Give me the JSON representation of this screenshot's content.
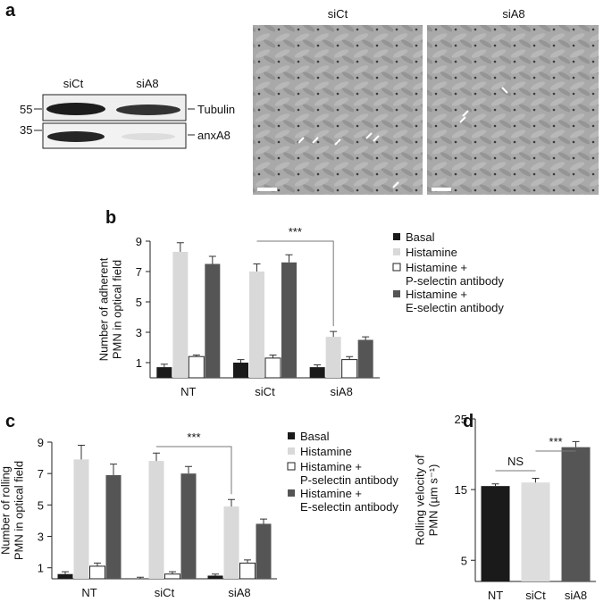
{
  "panel_a": {
    "label": "a",
    "blot": {
      "lanes": [
        "siCt",
        "siA8"
      ],
      "markers": [
        55,
        35
      ],
      "bands": [
        "Tubulin",
        "anxA8"
      ]
    },
    "micrographs": [
      "siCt",
      "siA8"
    ]
  },
  "chart_data": [
    {
      "panel": "b",
      "type": "bar",
      "ylabel": "Number of adherent\nPMN in optical field",
      "categories": [
        "NT",
        "siCt",
        "siA8"
      ],
      "series": [
        {
          "name": "Basal",
          "color": "#1a1a1a",
          "values": [
            0.7,
            1.0,
            0.7
          ],
          "errors": [
            0.2,
            0.2,
            0.15
          ]
        },
        {
          "name": "Histamine",
          "color": "#d9d9d9",
          "values": [
            8.3,
            7.0,
            2.7
          ],
          "errors": [
            0.6,
            0.5,
            0.35
          ]
        },
        {
          "name": "Histamine +\nP-selectin antibody",
          "color": "#ffffff",
          "values": [
            1.4,
            1.3,
            1.2
          ],
          "errors": [
            0.1,
            0.2,
            0.2
          ]
        },
        {
          "name": "Histamine +\nE-selectin antibody",
          "color": "#555555",
          "values": [
            7.5,
            7.6,
            2.5
          ],
          "errors": [
            0.5,
            0.5,
            0.2
          ]
        }
      ],
      "ylim": [
        0,
        9
      ],
      "yticks": [
        1,
        3,
        5,
        7,
        9
      ],
      "annotations": [
        "***"
      ]
    },
    {
      "panel": "c",
      "type": "bar",
      "ylabel": "Number of rolling\nPMN in optical field",
      "categories": [
        "NT",
        "siCt",
        "siA8"
      ],
      "series": [
        {
          "name": "Basal",
          "color": "#1a1a1a",
          "values": [
            0.6,
            0.3,
            0.5
          ],
          "errors": [
            0.15,
            0.1,
            0.1
          ]
        },
        {
          "name": "Histamine",
          "color": "#d9d9d9",
          "values": [
            7.9,
            7.8,
            4.9
          ],
          "errors": [
            0.9,
            0.5,
            0.45
          ]
        },
        {
          "name": "Histamine +\nP-selectin antibody",
          "color": "#ffffff",
          "values": [
            1.1,
            0.6,
            1.3
          ],
          "errors": [
            0.2,
            0.15,
            0.2
          ]
        },
        {
          "name": "Histamine +\nE-selectin antibody",
          "color": "#555555",
          "values": [
            6.9,
            7.0,
            3.8
          ],
          "errors": [
            0.7,
            0.45,
            0.3
          ]
        }
      ],
      "ylim": [
        0.3,
        9
      ],
      "yticks": [
        1,
        3,
        5,
        7,
        9
      ],
      "annotations": [
        "***"
      ]
    },
    {
      "panel": "d",
      "type": "bar",
      "ylabel": "Rolling velocity of\nPMN (µm s⁻¹)",
      "categories": [
        "NT",
        "siCt",
        "siA8"
      ],
      "colors": [
        "#1a1a1a",
        "#dddddd",
        "#555555"
      ],
      "values": [
        15.5,
        16.0,
        21.0
      ],
      "errors": [
        0.3,
        0.6,
        0.8
      ],
      "ylim": [
        2,
        25
      ],
      "yticks": [
        5,
        15,
        25
      ],
      "annotations": [
        "NS",
        "***"
      ]
    }
  ]
}
